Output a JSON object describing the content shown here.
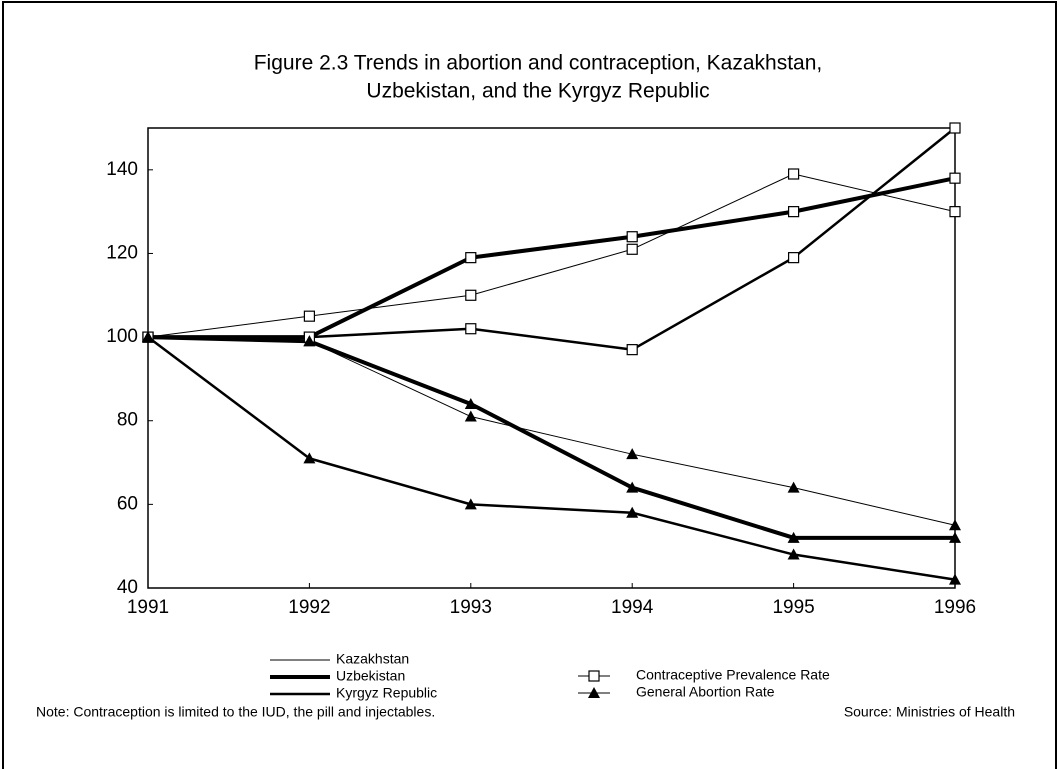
{
  "chart_data": {
    "type": "line",
    "title": [
      "Figure 2.3   Trends in abortion and contraception, Kazakhstan,",
      "Uzbekistan, and the Kyrgyz Republic"
    ],
    "x": [
      1991,
      1992,
      1993,
      1994,
      1995,
      1996
    ],
    "xlim": [
      1991,
      1996
    ],
    "xticks": [
      1991,
      1992,
      1993,
      1994,
      1995,
      1996
    ],
    "ylim": [
      40,
      150
    ],
    "yticks": [
      40,
      60,
      80,
      100,
      120,
      140
    ],
    "grid": false,
    "color": "#000000",
    "legend": {
      "countries": [
        {
          "name": "Kazakhstan",
          "width": 1
        },
        {
          "name": "Uzbekistan",
          "width": 4
        },
        {
          "name": "Kyrgyz Republic",
          "width": 2.5
        }
      ],
      "measures": [
        {
          "name": "Contraceptive Prevalence Rate",
          "marker": "square"
        },
        {
          "name": "General Abortion Rate",
          "marker": "triangle"
        }
      ]
    },
    "series": [
      {
        "country": 0,
        "measure": 0,
        "values": [
          100,
          105,
          110,
          121,
          139,
          130
        ]
      },
      {
        "country": 1,
        "measure": 0,
        "values": [
          100,
          100,
          119,
          124,
          130,
          138
        ]
      },
      {
        "country": 2,
        "measure": 0,
        "values": [
          100,
          100,
          102,
          97,
          119,
          150
        ]
      },
      {
        "country": 0,
        "measure": 1,
        "values": [
          100,
          99,
          81,
          72,
          64,
          55
        ]
      },
      {
        "country": 1,
        "measure": 1,
        "values": [
          100,
          99,
          84,
          64,
          52,
          52
        ]
      },
      {
        "country": 2,
        "measure": 1,
        "values": [
          100,
          71,
          60,
          58,
          48,
          42
        ]
      }
    ],
    "note": "Note:  Contraception is limited to the IUD, the pill and injectables.",
    "source": "Source:  Ministries of Health"
  }
}
